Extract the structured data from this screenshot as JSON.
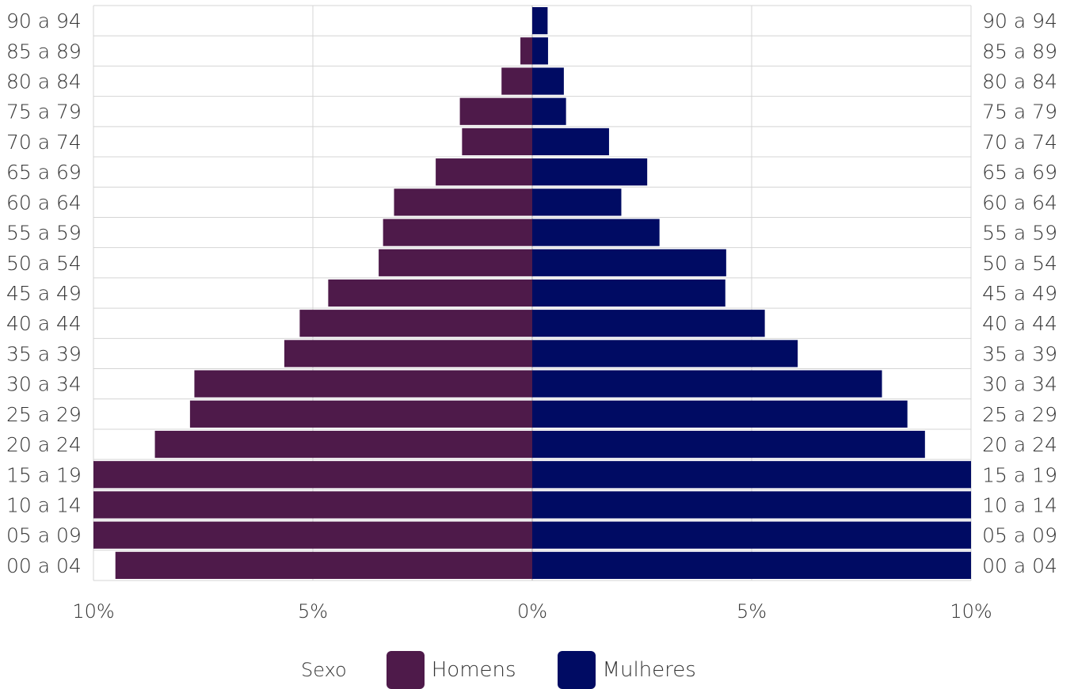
{
  "chart_data": {
    "type": "bar",
    "orientation": "horizontal",
    "subtype": "population-pyramid",
    "title": "",
    "xlabel": "",
    "ylabel": "",
    "xlim": [
      -10,
      10
    ],
    "x_ticks": [
      -10,
      -5,
      0,
      5,
      10
    ],
    "x_tick_labels": [
      "10%",
      "5%",
      "0%",
      "5%",
      "10%"
    ],
    "categories": [
      "00 a 04",
      "05 a 09",
      "10 a 14",
      "15 a 19",
      "20 a 24",
      "25 a 29",
      "30 a 34",
      "35 a 39",
      "40 a 44",
      "45 a 49",
      "50 a 54",
      "55 a 59",
      "60 a 64",
      "65 a 69",
      "70 a 74",
      "75 a 79",
      "80 a 84",
      "85 a 89",
      "90 a 94"
    ],
    "series": [
      {
        "name": "Homens",
        "color": "#4e1a4a",
        "values": [
          9.5,
          10.0,
          10.0,
          10.0,
          8.6,
          7.8,
          7.7,
          5.65,
          5.3,
          4.65,
          3.5,
          3.4,
          3.15,
          2.2,
          1.6,
          1.65,
          0.7,
          0.27,
          0.0
        ]
      },
      {
        "name": "Mulheres",
        "color": "#000b63",
        "values": [
          10.0,
          10.0,
          10.0,
          10.0,
          8.95,
          8.55,
          7.97,
          6.05,
          5.3,
          4.4,
          4.42,
          2.9,
          2.03,
          2.62,
          1.75,
          0.77,
          0.72,
          0.36,
          0.35
        ]
      }
    ],
    "grid": true,
    "legend_position": "bottom",
    "legend_title": "Sexo"
  }
}
